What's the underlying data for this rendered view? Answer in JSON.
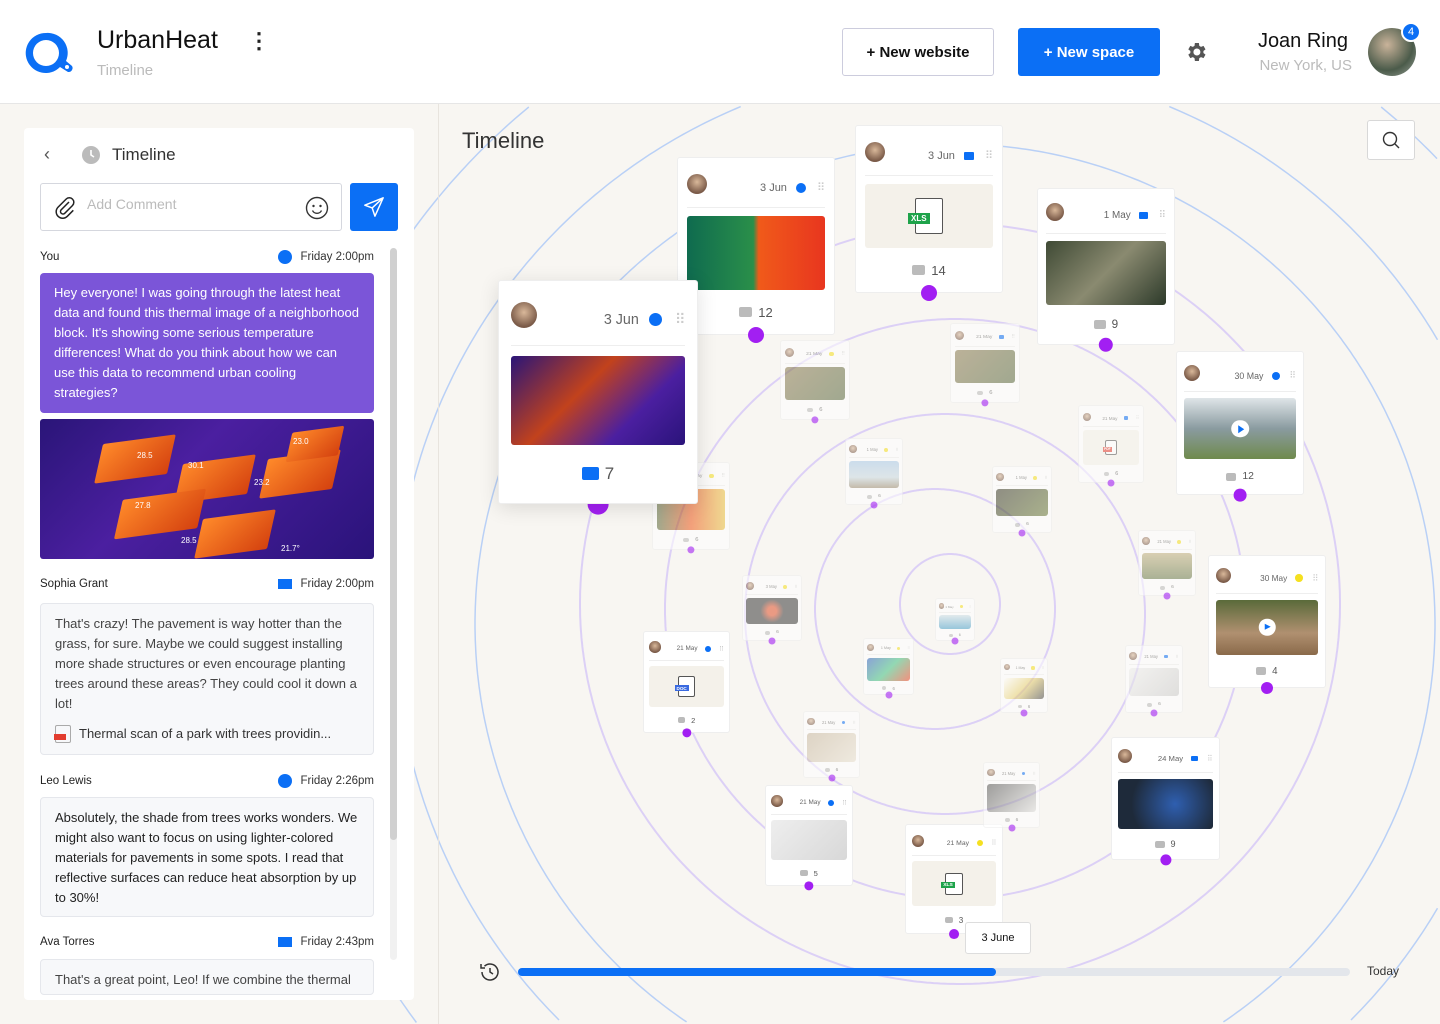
{
  "header": {
    "app_name": "UrbanHeat",
    "subtitle": "Timeline",
    "new_website": "+ New website",
    "new_space": "+ New space",
    "user_name": "Joan Ring",
    "user_location": "New York, US",
    "notification_count": "4"
  },
  "colors": {
    "accent": "#0b6ff5",
    "purple_dot": "#a21ff2",
    "message_you": "#7b55d8"
  },
  "panel": {
    "title": "Timeline",
    "comment_placeholder": "Add Comment",
    "messages": [
      {
        "author": "You",
        "channel": "messenger",
        "time": "Friday 2:00pm",
        "text": "Hey everyone! I was going through the latest heat data and found this thermal image of a neighborhood block. It's showing some serious temperature differences! What do you think about how we can use this data to recommend urban cooling strategies?",
        "image_labels": [
          "28.5",
          "30.1",
          "23.0",
          "23.2",
          "27.8",
          "28.5",
          "21.7°"
        ]
      },
      {
        "author": "Sophia Grant",
        "channel": "email",
        "time": "Friday 2:00pm",
        "text": "That's crazy! The pavement is way hotter than the grass, for sure. Maybe we could suggest installing more shade structures or even encourage planting trees around these areas? They could cool it down a lot!",
        "attachment": "Thermal scan of a park with trees providin..."
      },
      {
        "author": "Leo Lewis",
        "channel": "messenger",
        "time": "Friday 2:26pm",
        "text": "Absolutely, the shade from trees works wonders. We might also want to focus on using lighter-colored materials for pavements in some spots. I read that reflective surfaces can reduce heat absorption by up to 30%!"
      },
      {
        "author": "Ava Torres",
        "channel": "email",
        "time": "Friday 2:43pm",
        "text": "That's a great point, Leo! If we combine the thermal scan data with community input, we"
      }
    ]
  },
  "canvas": {
    "title": "Timeline",
    "cards": [
      {
        "date": "3 Jun",
        "channel": "facebook",
        "media": "thermal",
        "comments": "7"
      },
      {
        "date": "3 Jun",
        "channel": "facebook",
        "media": "thermal-split",
        "comments": "12"
      },
      {
        "date": "3 Jun",
        "channel": "email",
        "media": "xls",
        "comments": "14"
      },
      {
        "date": "1 May",
        "channel": "email",
        "media": "photo-people",
        "comments": "9"
      },
      {
        "date": "30 May",
        "channel": "facebook",
        "media": "video-mountain",
        "comments": "12"
      },
      {
        "date": "30 May",
        "channel": "snapchat",
        "media": "video-park",
        "comments": "4"
      },
      {
        "date": "24 May",
        "channel": "analytics",
        "media": "map",
        "comments": "9"
      },
      {
        "date": "21 May",
        "channel": "snapchat",
        "media": "xls",
        "comments": "3"
      },
      {
        "date": "21 May",
        "channel": "facebook",
        "media": "photo-pins",
        "comments": "5"
      },
      {
        "date": "21 May",
        "channel": "facebook",
        "media": "doc",
        "comments": "2"
      },
      {
        "date": "21 May",
        "channel": "snapchat",
        "media": "photo-planting",
        "comments": "6"
      },
      {
        "date": "21 May",
        "channel": "email",
        "media": "photo-planting",
        "comments": "6"
      },
      {
        "date": "21 May",
        "channel": "email",
        "media": "pdf",
        "comments": "6"
      },
      {
        "date": "1 May",
        "channel": "snapchat",
        "media": "photo-bench",
        "comments": "6"
      },
      {
        "date": "1 May",
        "channel": "snapchat",
        "media": "photo-flowers",
        "comments": "6"
      },
      {
        "date": "1 May",
        "channel": "snapchat",
        "media": "thermal-color",
        "comments": "6"
      },
      {
        "date": "21 May",
        "channel": "snapchat",
        "media": "photo-field",
        "comments": "6"
      },
      {
        "date": "3 May",
        "channel": "snapchat",
        "media": "photo-sunset",
        "comments": "6"
      },
      {
        "date": "1 May",
        "channel": "snapchat",
        "media": "photo-pool",
        "comments": "6"
      },
      {
        "date": "1 May",
        "channel": "snapchat",
        "media": "heatmap",
        "comments": "6"
      },
      {
        "date": "1 May",
        "channel": "snapchat",
        "media": "photo-flower",
        "comments": "6"
      },
      {
        "date": "21 May",
        "channel": "email",
        "media": "photo-white",
        "comments": "6"
      },
      {
        "date": "21 May",
        "channel": "facebook",
        "media": "photo-woman",
        "comments": "6"
      },
      {
        "date": "21 May",
        "channel": "facebook",
        "media": "dashboard",
        "comments": "6"
      }
    ],
    "timeline": {
      "current_label": "3 June",
      "end_label": "Today",
      "progress_percent": 57.5
    }
  }
}
